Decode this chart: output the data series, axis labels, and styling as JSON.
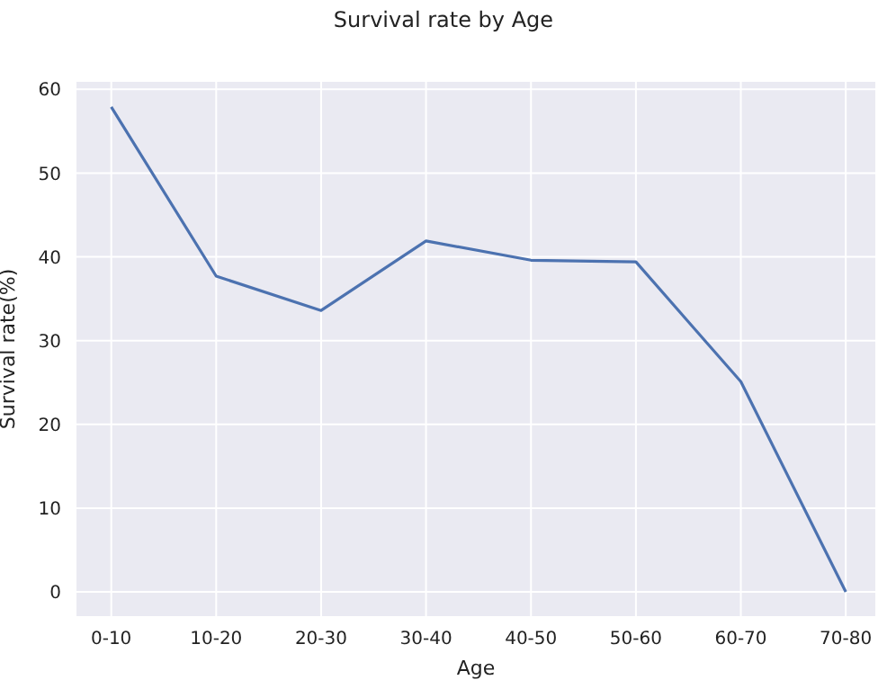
{
  "chart_data": {
    "type": "line",
    "title": "Survival rate by Age",
    "xlabel": "Age",
    "ylabel": "Survival rate(%)",
    "categories": [
      "0-10",
      "10-20",
      "20-30",
      "30-40",
      "40-50",
      "50-60",
      "60-70",
      "70-80"
    ],
    "series": [
      {
        "color": "#4c72b0",
        "values": [
          57.9,
          37.7,
          33.6,
          41.9,
          39.6,
          39.4,
          25.1,
          0
        ]
      }
    ],
    "ylim": [
      -3,
      61
    ],
    "yticks": [
      0,
      10,
      20,
      30,
      40,
      50,
      60
    ],
    "grid": true,
    "legend": false,
    "marker": "none",
    "line_style": "solid"
  }
}
